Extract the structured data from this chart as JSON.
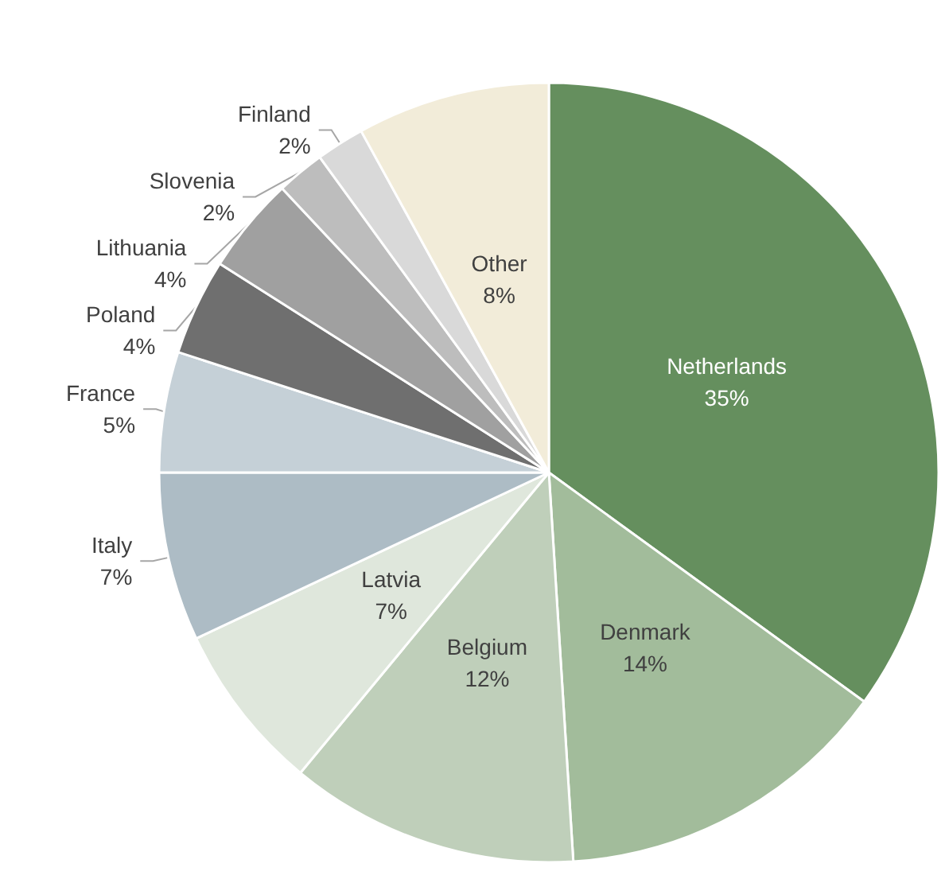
{
  "chart_data": {
    "type": "pie",
    "categories": [
      "Netherlands",
      "Denmark",
      "Belgium",
      "Latvia",
      "Italy",
      "France",
      "Poland",
      "Lithuania",
      "Slovenia",
      "Finland",
      "Other"
    ],
    "values": [
      35,
      14,
      12,
      7,
      7,
      5,
      4,
      4,
      2,
      2,
      8
    ],
    "value_labels": [
      "35%",
      "14%",
      "12%",
      "7%",
      "7%",
      "5%",
      "4%",
      "4%",
      "2%",
      "2%",
      "8%"
    ],
    "colors": [
      "#658f5e",
      "#a2bc9b",
      "#bfcfba",
      "#dfe7dc",
      "#adbcc5",
      "#c5d0d7",
      "#6f6f6f",
      "#a0a0a0",
      "#bdbdbd",
      "#d9d9d9",
      "#f2ecd9"
    ],
    "legend": false
  }
}
